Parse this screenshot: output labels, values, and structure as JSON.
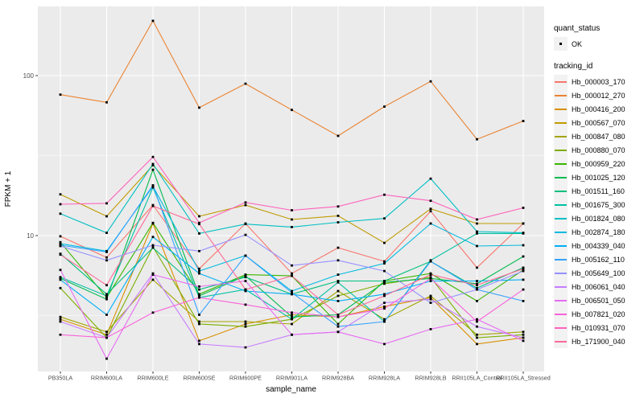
{
  "chart_data": {
    "type": "line",
    "title": "",
    "xlabel": "sample_name",
    "ylabel": "FPKM + 1",
    "y_scale": "log10",
    "grid": true,
    "legend_position": "right",
    "panel_bg": "#EBEBEB",
    "grid_color": "#FFFFFF",
    "axis_text_color": "#4D4D4D",
    "point_color": "#000000",
    "point_shape": "square",
    "y_ticks": [
      {
        "value": 10,
        "label": "10"
      },
      {
        "value": 100,
        "label": "100"
      }
    ],
    "y_minor_ticks": [
      3.1623,
      31.623
    ],
    "ylim": [
      1.45,
      270
    ],
    "categories": [
      "PB350LA",
      "RRIM600LA",
      "RRIM600LE",
      "RRIM600SE",
      "RRIM600PE",
      "RRIM901LA",
      "RRIM928BA",
      "RRIM928LA",
      "RRIM928LB",
      "RRII105LA_Control",
      "RRII105LA_Stressed"
    ],
    "series": [
      {
        "name": "Hb_000003_170",
        "color": "#F8766D",
        "values": [
          9.9,
          7.3,
          15.5,
          6.2,
          11.9,
          5.8,
          8.4,
          6.9,
          14.2,
          6.3,
          11.9
        ]
      },
      {
        "name": "Hb_000012_270",
        "color": "#EA8331",
        "values": [
          76,
          68,
          220,
          63,
          89,
          61,
          42,
          64,
          92,
          40,
          52
        ]
      },
      {
        "name": "Hb_000416_200",
        "color": "#D89000",
        "values": [
          3.0,
          2.4,
          11.9,
          2.2,
          2.8,
          3.2,
          3.1,
          3.6,
          4.1,
          2.1,
          2.3
        ]
      },
      {
        "name": "Hb_000567_070",
        "color": "#C09B00",
        "values": [
          18.1,
          13.2,
          27.5,
          13.2,
          15.5,
          12.6,
          13.3,
          9.0,
          14.7,
          11.9,
          11.9
        ]
      },
      {
        "name": "Hb_000847_080",
        "color": "#A3A500",
        "values": [
          3.1,
          2.5,
          5.3,
          2.9,
          2.9,
          2.8,
          4.5,
          3.0,
          4.2,
          2.4,
          2.5
        ]
      },
      {
        "name": "Hb_000880_070",
        "color": "#7CAE00",
        "values": [
          4.7,
          2.3,
          8.5,
          2.8,
          2.7,
          3.0,
          4.2,
          5.0,
          5.5,
          2.3,
          2.4
        ]
      },
      {
        "name": "Hb_000959_220",
        "color": "#39B600",
        "values": [
          9.1,
          4.1,
          12.0,
          4.3,
          5.7,
          5.6,
          2.8,
          5.2,
          5.8,
          3.9,
          6.1
        ]
      },
      {
        "name": "Hb_001025_120",
        "color": "#00BB4E",
        "values": [
          5.4,
          4.0,
          25.8,
          4.2,
          5.6,
          3.1,
          3.2,
          5.1,
          5.4,
          5.0,
          7.4
        ]
      },
      {
        "name": "Hb_001511_160",
        "color": "#00BF7D",
        "values": [
          7.7,
          4.3,
          8.4,
          4.6,
          5.5,
          4.3,
          5.2,
          5.2,
          6.9,
          4.7,
          6.3
        ]
      },
      {
        "name": "Hb_001675_300",
        "color": "#00C1A3",
        "values": [
          5.5,
          4.2,
          20.0,
          4.1,
          4.6,
          3.0,
          5.1,
          2.9,
          7.0,
          10.3,
          10.3
        ]
      },
      {
        "name": "Hb_001824_080",
        "color": "#00BFC4",
        "values": [
          13.7,
          10.4,
          28.0,
          10.3,
          11.8,
          11.3,
          12.1,
          12.8,
          22.7,
          10.6,
          10.4
        ]
      },
      {
        "name": "Hb_002874_180",
        "color": "#00BAE0",
        "values": [
          8.9,
          8.0,
          20.3,
          6.0,
          7.5,
          4.5,
          5.7,
          6.7,
          11.9,
          8.6,
          8.7
        ]
      },
      {
        "name": "Hb_004339_040",
        "color": "#00B0F6",
        "values": [
          5.3,
          3.2,
          9.8,
          5.8,
          4.5,
          4.3,
          3.9,
          4.3,
          5.2,
          5.2,
          5.3
        ]
      },
      {
        "name": "Hb_005162_110",
        "color": "#35A2FF",
        "values": [
          8.7,
          7.9,
          20.6,
          3.2,
          7.5,
          4.4,
          2.7,
          2.9,
          6.9,
          4.6,
          3.9
        ]
      },
      {
        "name": "Hb_005649_100",
        "color": "#9590FF",
        "values": [
          8.6,
          7.0,
          8.7,
          8.0,
          10.1,
          6.5,
          7.0,
          6.0,
          3.8,
          4.6,
          6.0
        ]
      },
      {
        "name": "Hb_006061_040",
        "color": "#C77CFF",
        "values": [
          2.9,
          2.3,
          5.8,
          2.1,
          2.0,
          2.4,
          2.5,
          3.8,
          4.0,
          2.7,
          2.3
        ]
      },
      {
        "name": "Hb_006501_050",
        "color": "#E76BF3",
        "values": [
          6.1,
          1.7,
          5.7,
          4.8,
          5.2,
          2.4,
          2.5,
          2.1,
          2.6,
          3.0,
          2.2
        ]
      },
      {
        "name": "Hb_007821_020",
        "color": "#FA62DB",
        "values": [
          2.4,
          2.3,
          3.3,
          4.1,
          3.7,
          3.3,
          3.1,
          3.5,
          5.4,
          2.9,
          4.6
        ]
      },
      {
        "name": "Hb_010931_070",
        "color": "#FF62BC",
        "values": [
          15.7,
          15.9,
          31.0,
          12.0,
          16.1,
          14.4,
          15.2,
          18.0,
          16.5,
          12.6,
          14.9
        ]
      },
      {
        "name": "Hb_171900_040",
        "color": "#FF6A98",
        "values": [
          7.6,
          4.9,
          15.3,
          11.8,
          4.6,
          5.6,
          3.2,
          4.2,
          5.7,
          4.9,
          6.2
        ]
      }
    ]
  },
  "legend": {
    "quant_status_title": "quant_status",
    "ok_label": "OK",
    "ok_marker": "black-point",
    "tracking_title": "tracking_id",
    "key_bg": "#F2F2F2"
  }
}
